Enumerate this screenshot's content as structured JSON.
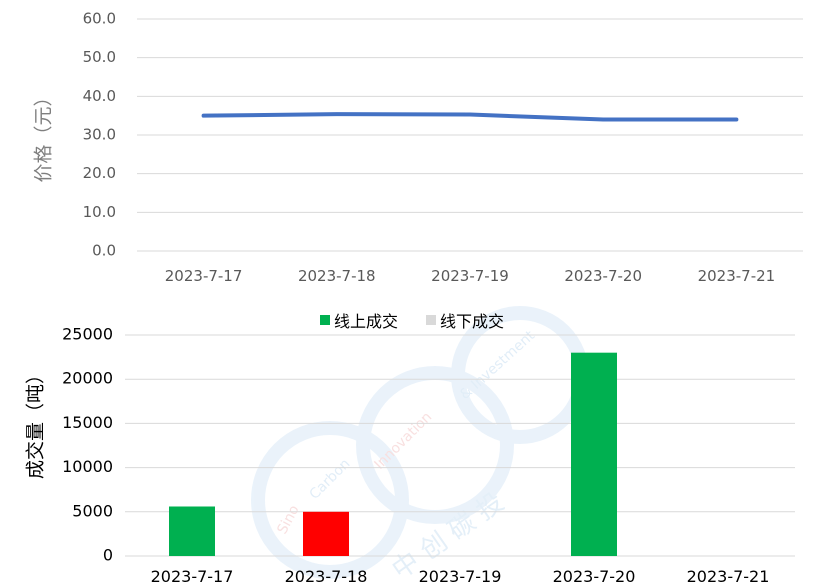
{
  "chart_data": [
    {
      "type": "line",
      "categories": [
        "2023-7-17",
        "2023-7-18",
        "2023-7-19",
        "2023-7-20",
        "2023-7-21"
      ],
      "series": [
        {
          "values": [
            35.0,
            35.4,
            35.3,
            34.0,
            34.0
          ],
          "color": "#4472c4"
        }
      ],
      "ylabel": "价格（元）",
      "ylim": [
        0,
        60
      ],
      "yticks": [
        "0.0",
        "10.0",
        "20.0",
        "30.0",
        "40.0",
        "50.0",
        "60.0"
      ],
      "grid": true
    },
    {
      "type": "bar",
      "categories": [
        "2023-7-17",
        "2023-7-18",
        "2023-7-19",
        "2023-7-20",
        "2023-7-21"
      ],
      "series": [
        {
          "name": "线上成交",
          "values": [
            5600,
            5000,
            0,
            23000,
            0
          ],
          "color": "#00b050"
        },
        {
          "name": "线下成交",
          "values": [
            0,
            0,
            0,
            0,
            0
          ],
          "color": "#d9d9d9"
        }
      ],
      "bar_colors": [
        "#00b050",
        "#ff0000",
        "#00b050",
        "#00b050",
        "#00b050"
      ],
      "ylabel": "成交量（吨）",
      "ylim": [
        0,
        25000
      ],
      "yticks": [
        "0",
        "5000",
        "10000",
        "15000",
        "20000",
        "25000"
      ],
      "legend_position": "top-center",
      "grid": true
    }
  ],
  "watermark": {
    "latin": "Sino Carbon Innovation & Investment",
    "cjk": "中创碳投"
  }
}
